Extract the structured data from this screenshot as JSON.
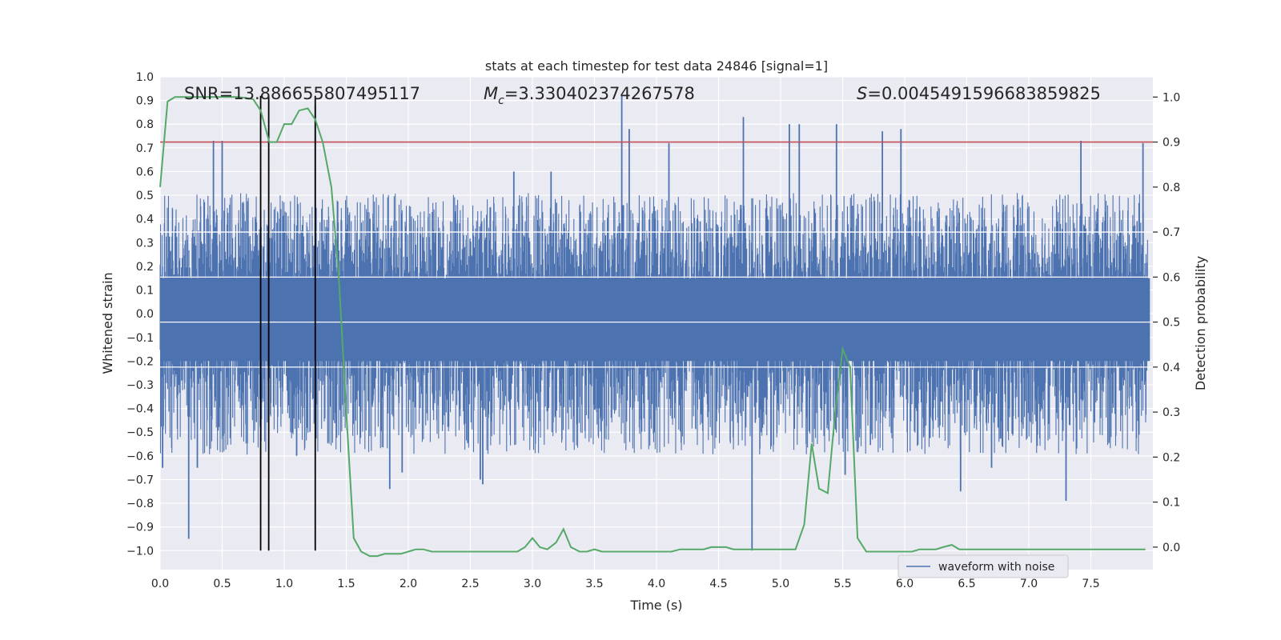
{
  "chart_data": {
    "type": "line",
    "title": "stats at each timestep for test data 24846 [signal=1]",
    "xlabel": "Time (s)",
    "ylabel_left": "Whitened strain",
    "ylabel_right": "Detection probability",
    "xlim": [
      0.0,
      8.0
    ],
    "ylim_left": [
      -1.08,
      1.0
    ],
    "ylim_right": [
      -0.05,
      1.045
    ],
    "x_ticks": [
      0.0,
      0.5,
      1.0,
      1.5,
      2.0,
      2.5,
      3.0,
      3.5,
      4.0,
      4.5,
      5.0,
      5.5,
      6.0,
      6.5,
      7.0,
      7.5
    ],
    "y_ticks_left": [
      -1.0,
      -0.9,
      -0.8,
      -0.7,
      -0.6,
      -0.5,
      -0.4,
      -0.3,
      -0.2,
      -0.1,
      0.0,
      0.1,
      0.2,
      0.3,
      0.4,
      0.5,
      0.6,
      0.7,
      0.8,
      0.9,
      1.0
    ],
    "y_ticks_right": [
      0.0,
      0.1,
      0.2,
      0.3,
      0.4,
      0.5,
      0.6,
      0.7,
      0.8,
      0.9,
      1.0
    ],
    "grid": true,
    "legend_position": "lower-right",
    "annotations": {
      "snr": "SNR=13.886655807495117",
      "mc_symbol": "M",
      "mc_sub": "c",
      "mc_value": "=3.330402374267578",
      "s_symbol": "S",
      "s_value": "=0.004549159668385982​5"
    },
    "threshold": {
      "y_right": 0.9,
      "color": "#c44e52"
    },
    "vertical_lines": [
      0.81,
      0.875,
      1.25
    ],
    "series": [
      {
        "name": "waveform with noise",
        "axis": "left",
        "color": "#4c72b0",
        "envelope": {
          "typical_pos": 0.3,
          "typical_neg": -0.35,
          "dense_pos": 0.15,
          "dense_neg": -0.2
        },
        "peaks": [
          [
            0.23,
            -0.95
          ],
          [
            0.5,
            0.73
          ],
          [
            0.43,
            0.73
          ],
          [
            0.3,
            -0.65
          ],
          [
            0.02,
            -0.65
          ],
          [
            1.25,
            0.88
          ],
          [
            1.1,
            -0.6
          ],
          [
            1.95,
            -0.67
          ],
          [
            1.85,
            -0.74
          ],
          [
            2.58,
            -0.7
          ],
          [
            2.6,
            -0.72
          ],
          [
            2.85,
            0.6
          ],
          [
            3.15,
            0.6
          ],
          [
            3.72,
            0.92
          ],
          [
            3.78,
            0.78
          ],
          [
            4.1,
            0.72
          ],
          [
            4.7,
            0.83
          ],
          [
            4.77,
            -1.0
          ],
          [
            5.07,
            0.8
          ],
          [
            5.15,
            0.8
          ],
          [
            5.45,
            0.8
          ],
          [
            5.52,
            -0.68
          ],
          [
            5.82,
            0.77
          ],
          [
            5.97,
            0.78
          ],
          [
            6.45,
            -0.75
          ],
          [
            6.7,
            -0.65
          ],
          [
            7.3,
            -0.79
          ],
          [
            7.42,
            0.73
          ],
          [
            7.92,
            0.72
          ]
        ]
      },
      {
        "name": "detection probability",
        "axis": "right",
        "color": "#55a868",
        "x": [
          0.0,
          0.06,
          0.12,
          0.19,
          0.25,
          0.31,
          0.38,
          0.44,
          0.5,
          0.56,
          0.62,
          0.69,
          0.75,
          0.81,
          0.88,
          0.94,
          1.0,
          1.06,
          1.12,
          1.19,
          1.25,
          1.31,
          1.38,
          1.44,
          1.5,
          1.56,
          1.62,
          1.69,
          1.75,
          1.81,
          1.88,
          1.94,
          2.0,
          2.06,
          2.12,
          2.19,
          2.25,
          2.31,
          2.38,
          2.44,
          2.5,
          2.56,
          2.62,
          2.69,
          2.75,
          2.81,
          2.88,
          2.94,
          3.0,
          3.06,
          3.12,
          3.19,
          3.25,
          3.31,
          3.38,
          3.44,
          3.5,
          3.56,
          3.62,
          3.69,
          3.75,
          3.81,
          3.88,
          3.94,
          4.0,
          4.06,
          4.12,
          4.19,
          4.25,
          4.31,
          4.38,
          4.44,
          4.5,
          4.56,
          4.62,
          4.69,
          4.75,
          4.81,
          4.88,
          4.94,
          5.0,
          5.06,
          5.12,
          5.19,
          5.25,
          5.31,
          5.38,
          5.44,
          5.5,
          5.56,
          5.62,
          5.69,
          5.75,
          5.81,
          5.88,
          5.94,
          6.0,
          6.06,
          6.12,
          6.19,
          6.25,
          6.31,
          6.38,
          6.44,
          6.5,
          6.56,
          6.62,
          6.69,
          6.75,
          6.81,
          6.88,
          6.94,
          7.0,
          7.06,
          7.12,
          7.19,
          7.25,
          7.31,
          7.38,
          7.44,
          7.5,
          7.56,
          7.62,
          7.69,
          7.75,
          7.81,
          7.88,
          7.94
        ],
        "y": [
          0.8,
          0.99,
          1.0,
          1.0,
          1.0,
          1.0,
          1.0,
          1.0,
          1.0,
          1.0,
          1.0,
          0.998,
          0.995,
          0.97,
          0.9,
          0.9,
          0.94,
          0.94,
          0.97,
          0.975,
          0.95,
          0.9,
          0.8,
          0.6,
          0.3,
          0.02,
          -0.01,
          -0.02,
          -0.02,
          -0.015,
          -0.015,
          -0.015,
          -0.01,
          -0.005,
          -0.005,
          -0.01,
          -0.01,
          -0.01,
          -0.01,
          -0.01,
          -0.01,
          -0.01,
          -0.01,
          -0.01,
          -0.01,
          -0.01,
          -0.01,
          0.0,
          0.02,
          0.0,
          -0.005,
          0.01,
          0.04,
          0.0,
          -0.01,
          -0.01,
          -0.005,
          -0.01,
          -0.01,
          -0.01,
          -0.01,
          -0.01,
          -0.01,
          -0.01,
          -0.01,
          -0.01,
          -0.01,
          -0.005,
          -0.005,
          -0.005,
          -0.005,
          0.0,
          0.0,
          0.0,
          -0.005,
          -0.005,
          -0.005,
          -0.005,
          -0.005,
          -0.005,
          -0.005,
          -0.005,
          -0.005,
          0.05,
          0.23,
          0.13,
          0.12,
          0.3,
          0.44,
          0.4,
          0.02,
          -0.01,
          -0.01,
          -0.01,
          -0.01,
          -0.01,
          -0.01,
          -0.01,
          -0.005,
          -0.005,
          -0.005,
          0.0,
          0.005,
          -0.005,
          -0.005,
          -0.005,
          -0.005,
          -0.005,
          -0.005,
          -0.005,
          -0.005,
          -0.005,
          -0.005,
          -0.005,
          -0.005,
          -0.005,
          -0.005,
          -0.005,
          -0.005,
          -0.005,
          -0.005,
          -0.005,
          -0.005,
          -0.005,
          -0.005,
          -0.005,
          -0.005,
          -0.005
        ]
      }
    ]
  }
}
